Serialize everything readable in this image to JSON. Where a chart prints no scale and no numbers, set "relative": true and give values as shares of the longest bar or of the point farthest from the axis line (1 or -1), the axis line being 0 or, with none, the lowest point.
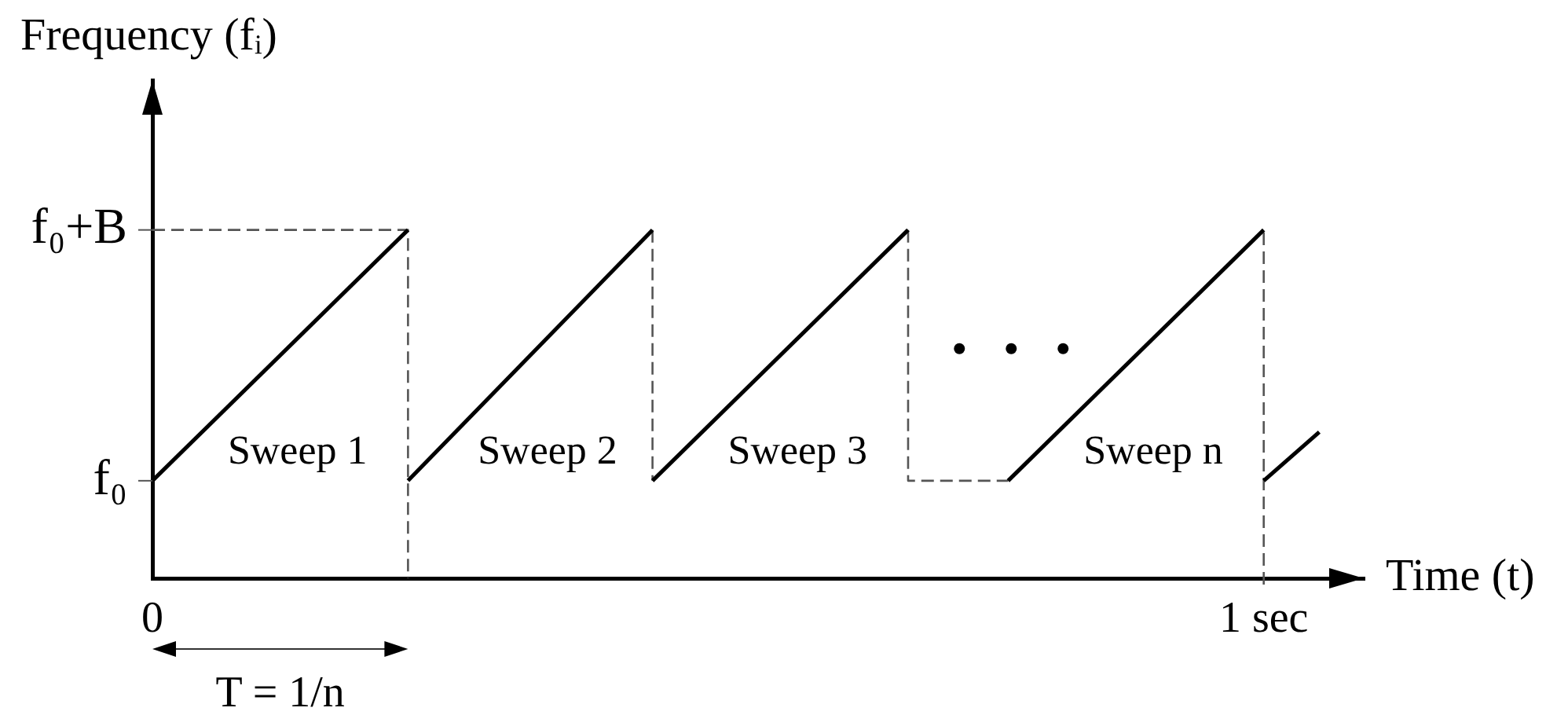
{
  "chart_data": {
    "type": "line",
    "relative": true,
    "xlabel": "Time (t)",
    "ylabel": "Frequency (fᵢ)",
    "xlim": [
      0,
      1.09
    ],
    "xticks": [
      0,
      {
        "value": 1,
        "label": "1 sec"
      }
    ],
    "series": [
      {
        "color": "#000000",
        "line_style": "solid",
        "x": [
          0,
          0.23
        ],
        "values": [
          0.28,
          1
        ]
      },
      {
        "color": "#000000",
        "line_style": "solid",
        "x": [
          0.23,
          0.45
        ],
        "values": [
          0.28,
          1
        ]
      },
      {
        "color": "#000000",
        "line_style": "solid",
        "x": [
          0.45,
          0.68
        ],
        "values": [
          0.28,
          1
        ]
      },
      {
        "color": "#000000",
        "line_style": "solid",
        "x": [
          0.77,
          1
        ],
        "values": [
          0.28,
          1
        ]
      },
      {
        "color": "#000000",
        "line_style": "solid",
        "x": [
          1,
          1.05
        ],
        "values": [
          0.28,
          0.42
        ]
      },
      {
        "color": "#555555",
        "line_style": "dashed",
        "x": [
          0,
          0.23,
          0.23,
          null,
          0.45,
          0.45,
          null,
          0.68,
          0.68,
          0.77
        ],
        "values": [
          1,
          1,
          0,
          null,
          1,
          0.28,
          null,
          1,
          0.28,
          0.28
        ]
      }
    ],
    "ref_lines": [
      {
        "axis": "x",
        "value": 1,
        "color": "#555555",
        "line_style": "dashed"
      }
    ],
    "annotations": [
      {
        "text": "f₀+B",
        "x": 0,
        "y": 1
      },
      {
        "text": "f₀",
        "x": 0,
        "y": 0.28
      },
      "Sweep 1",
      "Sweep 2",
      "Sweep 3",
      "Sweep n",
      "T = 1/n"
    ]
  }
}
